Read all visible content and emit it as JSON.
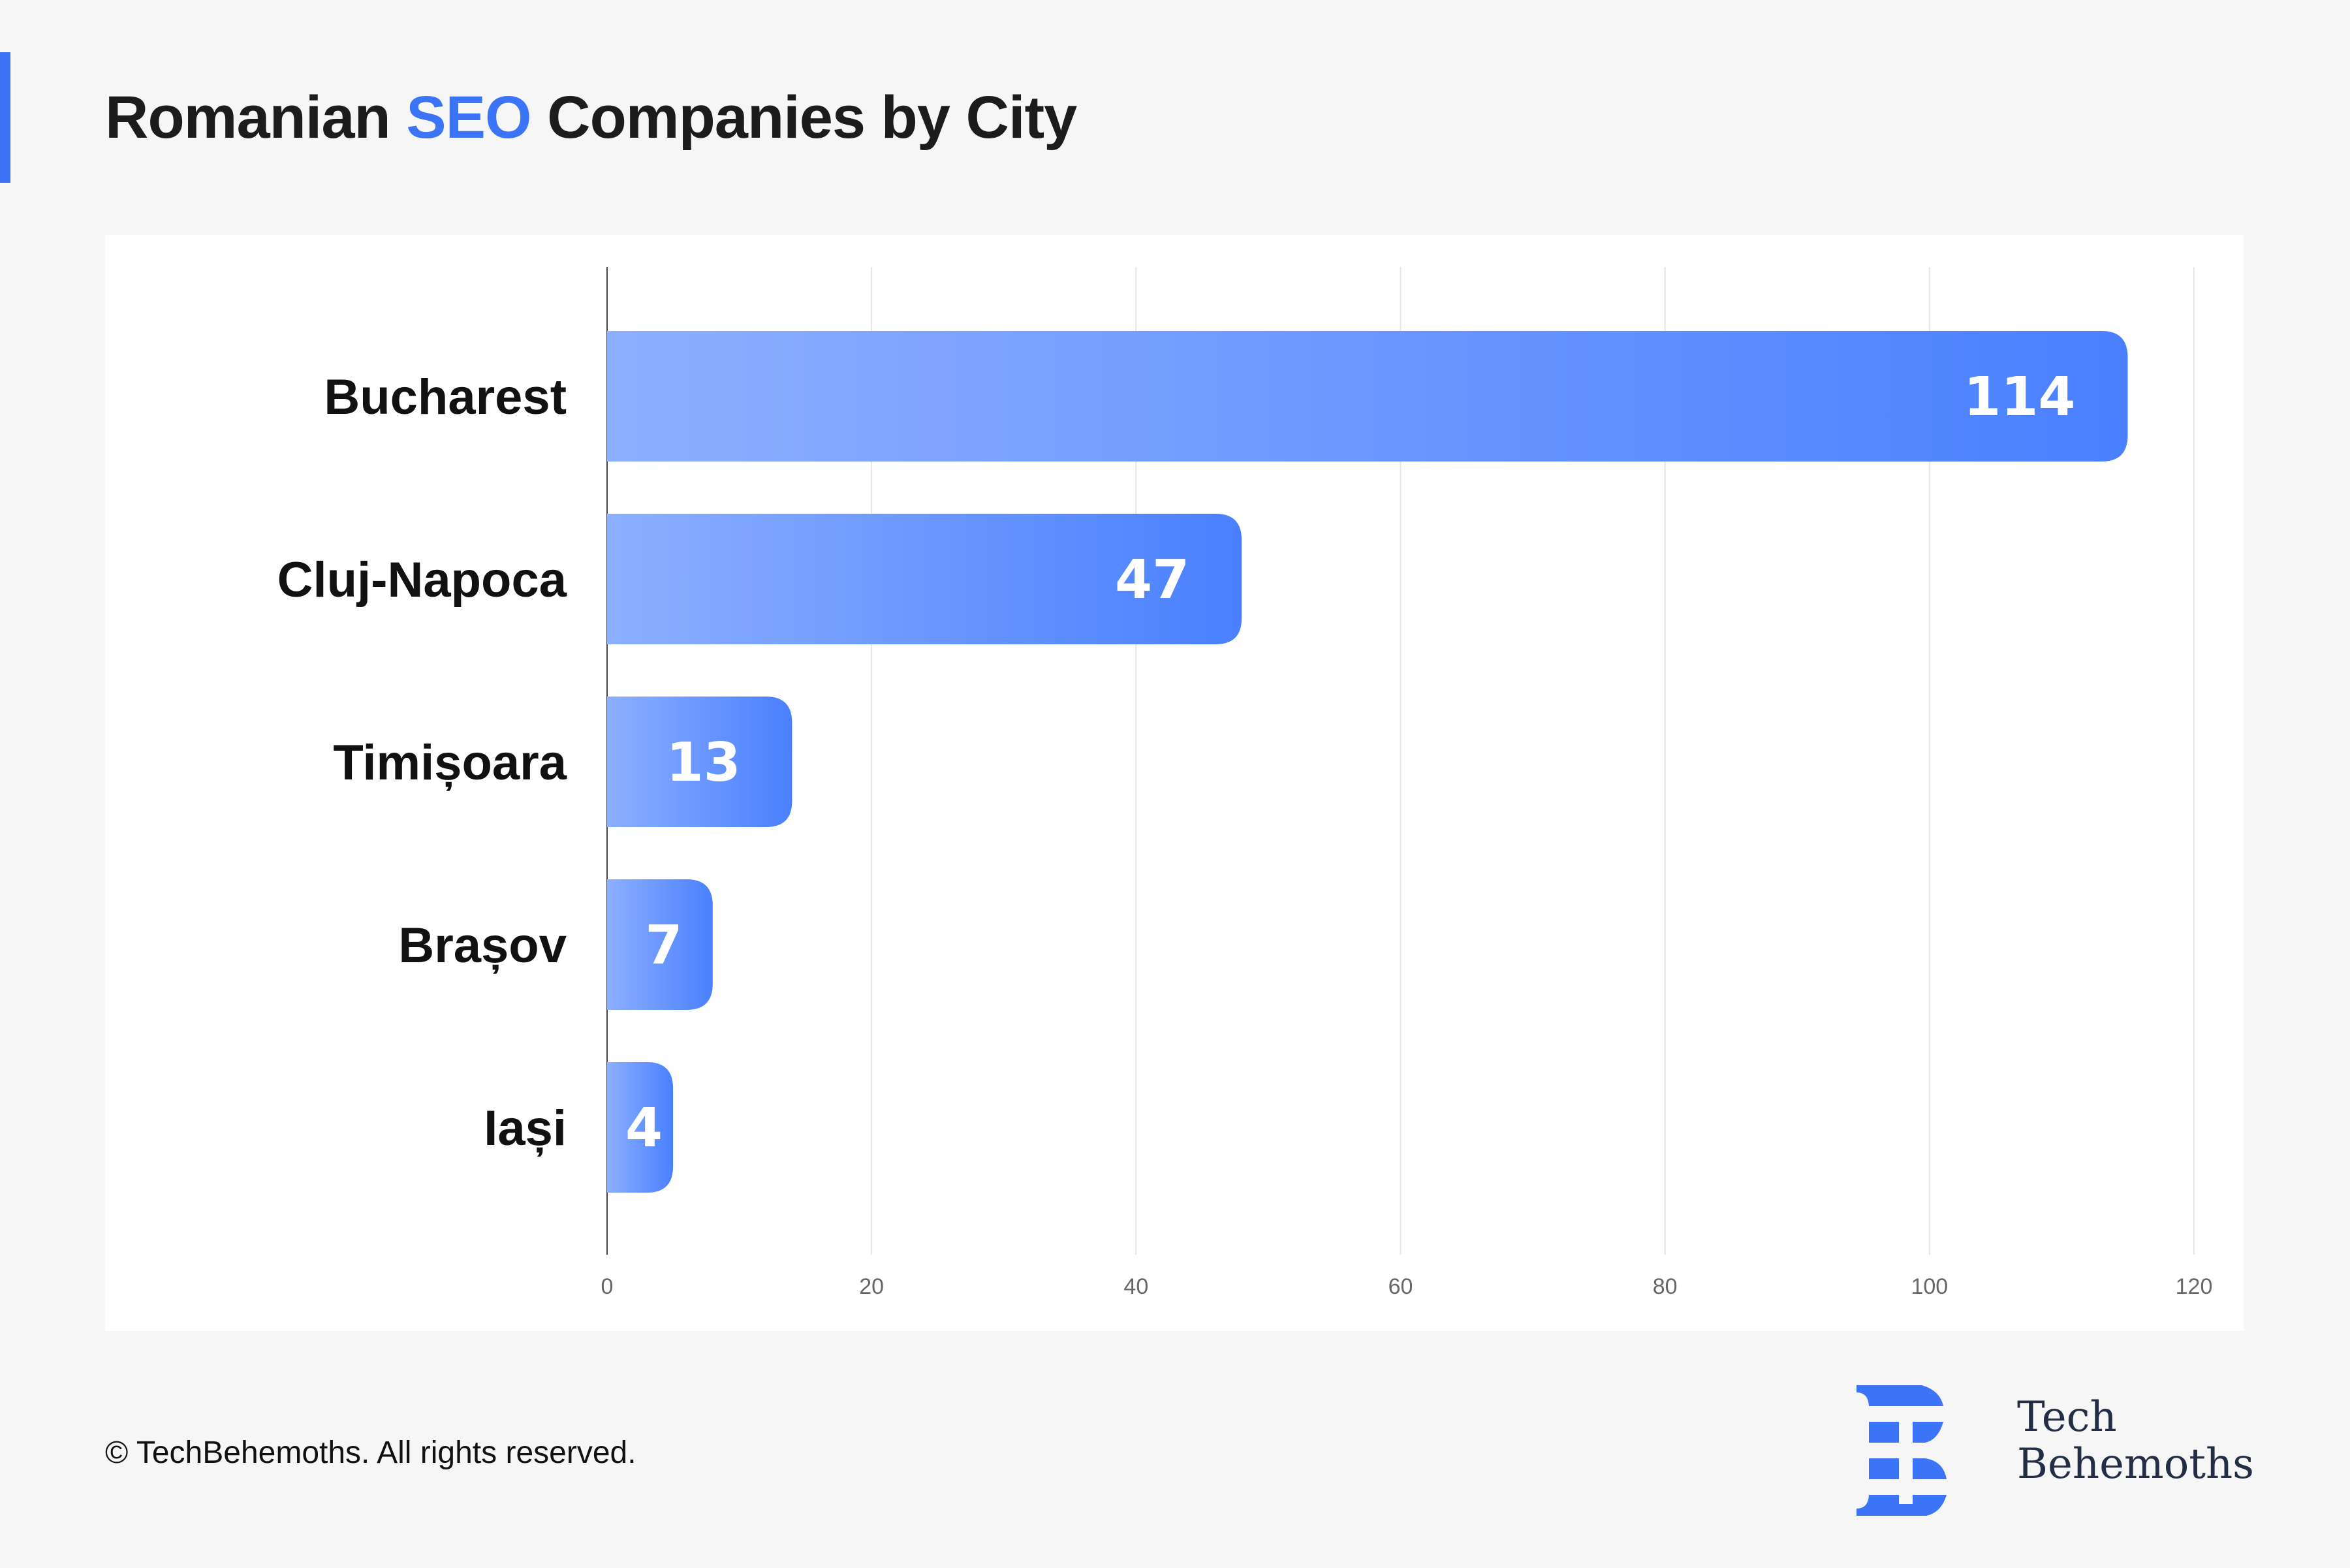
{
  "title": {
    "prefix": "Romanian ",
    "highlight": "SEO",
    "suffix": " Companies by City"
  },
  "chart_data": {
    "type": "bar",
    "orientation": "horizontal",
    "title": "Romanian SEO Companies by City",
    "categories": [
      "Bucharest",
      "Cluj-Napoca",
      "Timișoara",
      "Brașov",
      "Iași"
    ],
    "values": [
      114,
      47,
      13,
      7,
      4
    ],
    "xlabel": "",
    "ylabel": "",
    "xlim": [
      0,
      120
    ],
    "xticks": [
      0,
      20,
      40,
      60,
      80,
      100,
      120
    ],
    "grid": true,
    "colors": {
      "bar_start": "#8cafff",
      "bar_end": "#4a80ff",
      "grid": "#e6e6e6",
      "axis": "#444444"
    }
  },
  "footer": {
    "copyright": "© TechBehemoths. All rights reserved."
  },
  "logo": {
    "line1": "Tech",
    "line2": "Behemoths",
    "color": "#3b74f6"
  }
}
